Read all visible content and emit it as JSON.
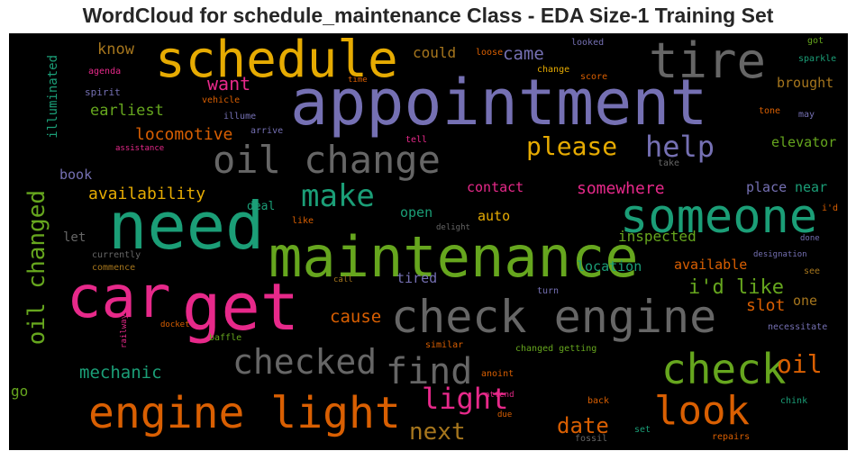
{
  "title": "WordCloud for schedule_maintenance Class - EDA Size-1 Training Set",
  "colors": {
    "purple": "#7570b3",
    "green": "#1b9e77",
    "orange": "#d95f02",
    "pink": "#e7298a",
    "lime": "#66a61e",
    "gold": "#e6ab02",
    "brown": "#a6761d",
    "gray": "#666666"
  },
  "words": {
    "appointment": "appointment",
    "schedule": "schedule",
    "tire": "tire",
    "need": "need",
    "maintenance": "maintenance",
    "someone": "someone",
    "car": "car",
    "get": "get",
    "check_engine": "check engine",
    "oil_change": "oil change",
    "engine_light": "engine light",
    "check": "check",
    "look": "look",
    "find": "find",
    "checked": "checked",
    "oil_changed": "oil changed",
    "make": "make",
    "help": "help",
    "please": "please",
    "light": "light",
    "oil": "oil",
    "next": "next",
    "date": "date",
    "mechanic": "mechanic",
    "cause": "cause",
    "i_d_like": "i'd like",
    "slot": "slot",
    "available": "available",
    "location": "location",
    "inspected": "inspected",
    "somewhere": "somewhere",
    "contact": "contact",
    "auto": "auto",
    "open": "open",
    "tired": "tired",
    "availability": "availability",
    "locomotive": "locomotive",
    "earliest": "earliest",
    "want": "want",
    "know": "know",
    "could": "could",
    "came": "came",
    "brought": "brought",
    "elevator": "elevator",
    "place": "place",
    "near": "near",
    "one": "one",
    "book": "book",
    "deal": "deal",
    "let": "let",
    "go": "go",
    "illuminated": "illuminated",
    "agenda": "agenda",
    "spirit": "spirit",
    "vehicle": "vehicle",
    "illume": "illume",
    "arrive": "arrive",
    "assistance": "assistance",
    "time": "time",
    "loose": "loose",
    "change": "change",
    "score": "score",
    "looked": "looked",
    "got": "got",
    "sparkle": "sparkle",
    "tone": "tone",
    "may": "may",
    "tell": "tell",
    "take": "take",
    "i_d": "i'd",
    "done": "done",
    "designation": "designation",
    "see": "see",
    "like": "like",
    "delight": "delight",
    "currently": "currently",
    "commence": "commence",
    "call": "call",
    "turn": "turn",
    "railway": "railway",
    "docket": "docket",
    "baffle": "baffle",
    "similar": "similar",
    "changed_getting": "changed getting",
    "necessitate": "necessitate",
    "anoint": "anoint",
    "attend": "attend",
    "due": "due",
    "back": "back",
    "chink": "chink",
    "fossil": "fossil",
    "set": "set",
    "repairs": "repairs"
  }
}
